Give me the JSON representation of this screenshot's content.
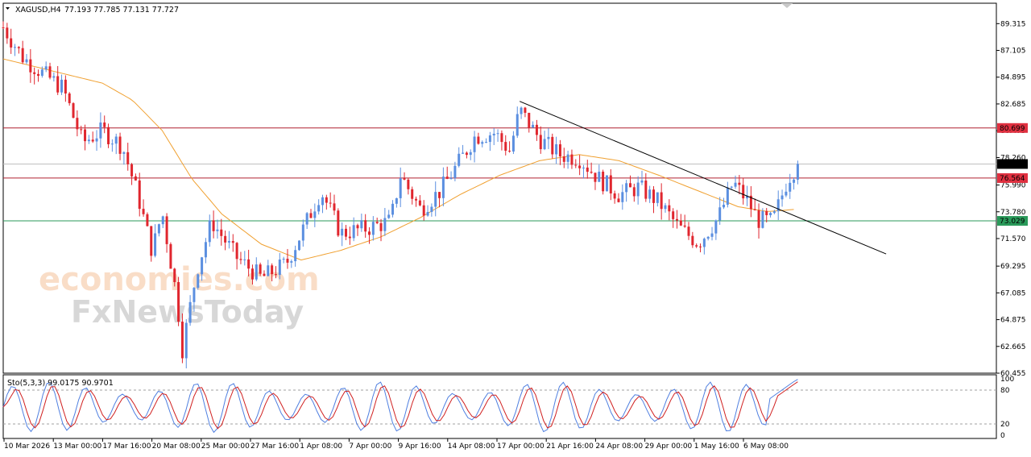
{
  "header": {
    "symbol": "XAGUSD,H4",
    "ohlc": "77.193 77.785 77.131 77.727"
  },
  "indicator": {
    "label": "Sto(5,3,3) 99.0175 90.9701",
    "levels": [
      "100",
      "80",
      "20",
      "0"
    ]
  },
  "watermark": {
    "line1": "economies.com",
    "line2": "FxNewsToday"
  },
  "colors": {
    "bull": "#5b8fe0",
    "bear": "#e0262e",
    "ma": "#f0a030",
    "resistance": "#b02030",
    "support": "#2a9a5a",
    "trend": "#000000",
    "price_tag": "#000000",
    "stoch_main": "#4f7fe0",
    "stoch_signal": "#d02020"
  },
  "chart_data": {
    "type": "candlestick",
    "ylim": [
      60.455,
      91.0
    ],
    "yticks": [
      "89.315",
      "87.105",
      "84.895",
      "82.685",
      "80.475",
      "78.260",
      "75.990",
      "73.780",
      "71.570",
      "69.295",
      "67.085",
      "64.875",
      "62.665",
      "60.455"
    ],
    "xticks": [
      "10 Mar 2026",
      "13 Mar 00:00",
      "17 Mar 16:00",
      "20 Mar 08:00",
      "25 Mar 00:00",
      "27 Mar 16:00",
      "1 Apr 08:00",
      "7 Apr 00:00",
      "9 Apr 16:00",
      "14 Apr 08:00",
      "17 Apr 00:00",
      "21 Apr 16:00",
      "24 Apr 08:00",
      "29 Apr 00:00",
      "1 May 16:00",
      "6 May 08:00"
    ],
    "price_levels": [
      {
        "value": 80.699,
        "label": "80.699",
        "kind": "resistance"
      },
      {
        "value": 76.564,
        "label": "76.564",
        "kind": "resistance"
      },
      {
        "value": 73.029,
        "label": "73.029",
        "kind": "support"
      }
    ],
    "current_price": {
      "value": 77.727,
      "label": "77.727"
    },
    "trendline": {
      "from": [
        0.52,
        82.9
      ],
      "to": [
        0.889,
        70.3
      ]
    },
    "path": [
      [
        0.0,
        89.0
      ],
      [
        0.02,
        86.5
      ],
      [
        0.04,
        85.2
      ],
      [
        0.06,
        84.0
      ],
      [
        0.08,
        79.5
      ],
      [
        0.1,
        80.5
      ],
      [
        0.12,
        79.2
      ],
      [
        0.135,
        75.3
      ],
      [
        0.15,
        70.5
      ],
      [
        0.16,
        73.8
      ],
      [
        0.175,
        66.6
      ],
      [
        0.18,
        62.3
      ],
      [
        0.195,
        69.0
      ],
      [
        0.21,
        73.0
      ],
      [
        0.235,
        70.0
      ],
      [
        0.26,
        68.3
      ],
      [
        0.285,
        69.5
      ],
      [
        0.3,
        72.0
      ],
      [
        0.32,
        75.5
      ],
      [
        0.34,
        72.0
      ],
      [
        0.37,
        72.5
      ],
      [
        0.39,
        73.0
      ],
      [
        0.4,
        76.8
      ],
      [
        0.42,
        74.0
      ],
      [
        0.44,
        75.5
      ],
      [
        0.46,
        78.0
      ],
      [
        0.475,
        80.0
      ],
      [
        0.495,
        80.3
      ],
      [
        0.51,
        78.8
      ],
      [
        0.52,
        82.2
      ],
      [
        0.54,
        79.8
      ],
      [
        0.56,
        78.5
      ],
      [
        0.58,
        78.2
      ],
      [
        0.6,
        76.5
      ],
      [
        0.62,
        75.2
      ],
      [
        0.64,
        75.8
      ],
      [
        0.66,
        74.6
      ],
      [
        0.68,
        72.5
      ],
      [
        0.7,
        71.2
      ],
      [
        0.72,
        73.3
      ],
      [
        0.735,
        76.2
      ],
      [
        0.75,
        74.6
      ],
      [
        0.76,
        73.1
      ],
      [
        0.775,
        73.0
      ],
      [
        0.79,
        76.5
      ],
      [
        0.8,
        77.7
      ]
    ],
    "ma_path": [
      [
        0.0,
        86.4
      ],
      [
        0.06,
        85.2
      ],
      [
        0.1,
        84.4
      ],
      [
        0.13,
        83.0
      ],
      [
        0.16,
        80.5
      ],
      [
        0.19,
        76.5
      ],
      [
        0.22,
        73.6
      ],
      [
        0.26,
        71.1
      ],
      [
        0.3,
        69.8
      ],
      [
        0.34,
        70.6
      ],
      [
        0.38,
        71.7
      ],
      [
        0.42,
        73.3
      ],
      [
        0.46,
        75.2
      ],
      [
        0.5,
        76.8
      ],
      [
        0.54,
        78.0
      ],
      [
        0.58,
        78.5
      ],
      [
        0.62,
        78.0
      ],
      [
        0.66,
        76.8
      ],
      [
        0.7,
        75.5
      ],
      [
        0.74,
        74.2
      ],
      [
        0.77,
        73.8
      ],
      [
        0.8,
        74.0
      ]
    ]
  }
}
